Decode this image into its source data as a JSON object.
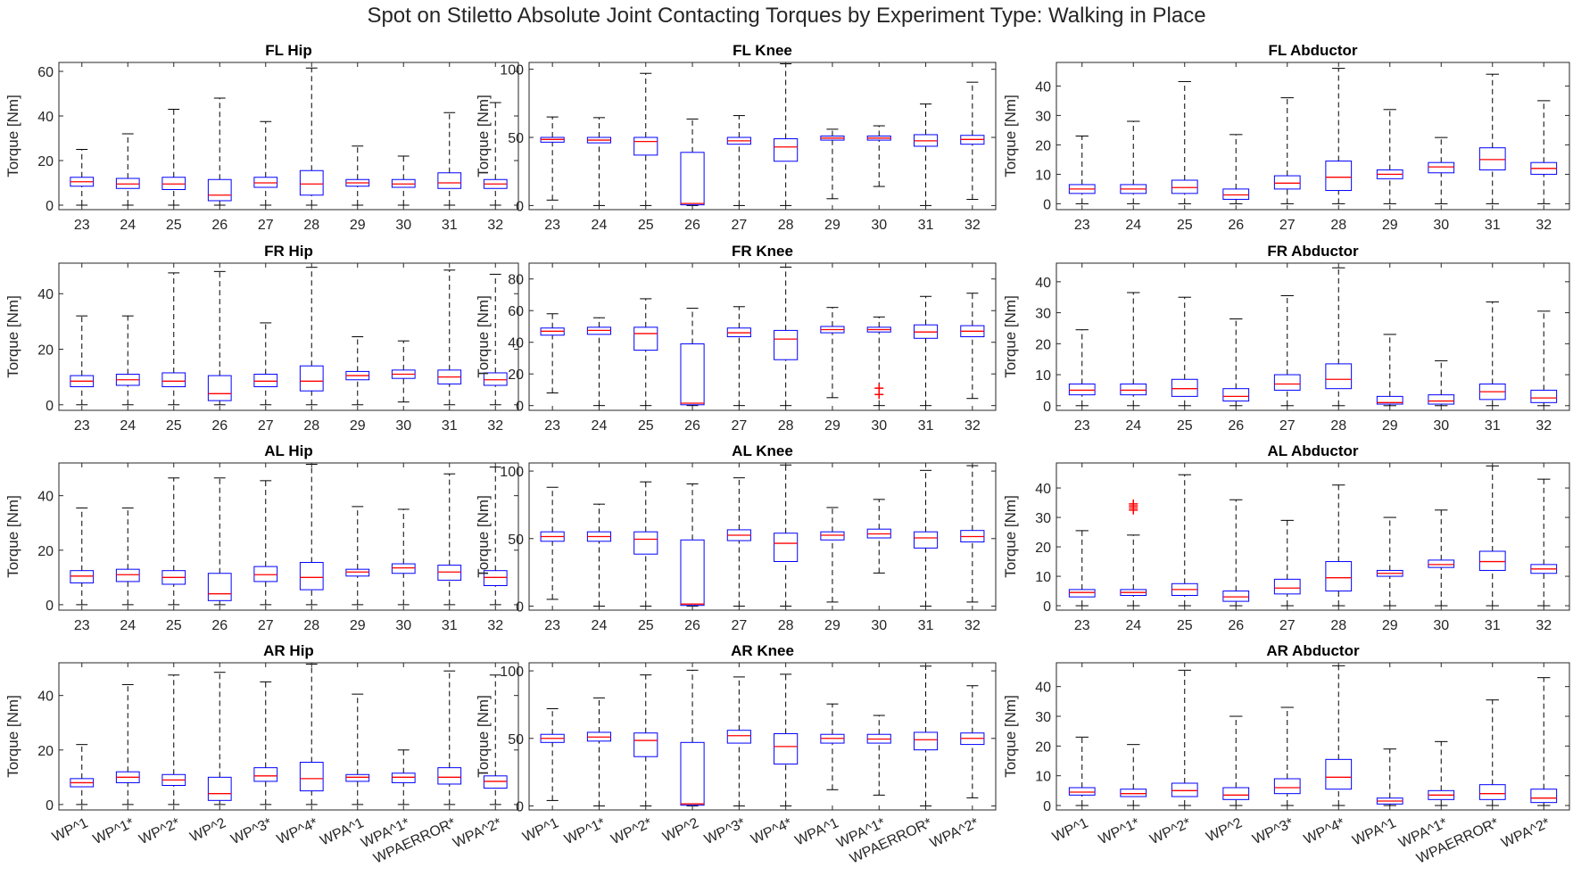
{
  "figure_title": "Spot on Stiletto Absolute Joint Contacting Torques by Experiment Type: Walking in Place",
  "colors": {
    "box": "#0000ff",
    "median": "#ff0000",
    "whisker": "#000000",
    "outlier": "#ff0000",
    "axes": "#262626"
  },
  "x_labels_numeric": [
    "23",
    "24",
    "25",
    "26",
    "27",
    "28",
    "29",
    "30",
    "31",
    "32"
  ],
  "x_labels_experiment": [
    "WP^1",
    "WP^1*",
    "WP^2*",
    "WP^2",
    "WP^3*",
    "WP^4*",
    "WPA^1",
    "WPA^1*",
    "WPAERROR*",
    "WPA^2*"
  ],
  "chart_data": [
    {
      "type": "box",
      "title": "FL Hip",
      "ylabel": "Torque [Nm]",
      "ylim": [
        -2,
        64
      ],
      "yticks": [
        0,
        20,
        40,
        60
      ],
      "xlabel_set": "numeric",
      "boxes": [
        {
          "lo": 0,
          "q1": 8.5,
          "med": 10.5,
          "q3": 12.5,
          "hi": 25
        },
        {
          "lo": 0,
          "q1": 7.5,
          "med": 9.5,
          "q3": 12,
          "hi": 32
        },
        {
          "lo": 0,
          "q1": 7,
          "med": 9.5,
          "q3": 12.5,
          "hi": 43
        },
        {
          "lo": 0,
          "q1": 2,
          "med": 4.5,
          "q3": 11.5,
          "hi": 48
        },
        {
          "lo": 0,
          "q1": 8,
          "med": 10,
          "q3": 12.5,
          "hi": 37.5
        },
        {
          "lo": 0,
          "q1": 4.5,
          "med": 9.5,
          "q3": 15.5,
          "hi": 61.5
        },
        {
          "lo": 0,
          "q1": 8.5,
          "med": 10,
          "q3": 11.5,
          "hi": 26.5
        },
        {
          "lo": 0,
          "q1": 8,
          "med": 9.5,
          "q3": 11.5,
          "hi": 22
        },
        {
          "lo": 0,
          "q1": 7.5,
          "med": 10,
          "q3": 14.5,
          "hi": 41.5
        },
        {
          "lo": 0,
          "q1": 7.5,
          "med": 9.5,
          "q3": 11.5,
          "hi": 46
        }
      ],
      "outliers": []
    },
    {
      "type": "box",
      "title": "FL Knee",
      "ylabel": "Torque [Nm]",
      "ylim": [
        -3,
        105
      ],
      "yticks": [
        0,
        50,
        100
      ],
      "xlabel_set": "numeric",
      "boxes": [
        {
          "lo": 4,
          "q1": 46.5,
          "med": 48.5,
          "q3": 50,
          "hi": 65
        },
        {
          "lo": 0,
          "q1": 46,
          "med": 48,
          "q3": 50,
          "hi": 64.5
        },
        {
          "lo": 0,
          "q1": 37,
          "med": 47,
          "q3": 50,
          "hi": 97
        },
        {
          "lo": 0,
          "q1": 0.5,
          "med": 1.5,
          "q3": 39,
          "hi": 63.5
        },
        {
          "lo": 0,
          "q1": 45,
          "med": 47.5,
          "q3": 50,
          "hi": 66
        },
        {
          "lo": 0,
          "q1": 32.5,
          "med": 43,
          "q3": 49,
          "hi": 104
        },
        {
          "lo": 5,
          "q1": 48,
          "med": 49.5,
          "q3": 51,
          "hi": 56
        },
        {
          "lo": 14,
          "q1": 48,
          "med": 49.5,
          "q3": 51,
          "hi": 58.5
        },
        {
          "lo": 0,
          "q1": 43.5,
          "med": 47.5,
          "q3": 52,
          "hi": 74.5
        },
        {
          "lo": 4.5,
          "q1": 45,
          "med": 48.5,
          "q3": 51.5,
          "hi": 90.5
        }
      ],
      "outliers": []
    },
    {
      "type": "box",
      "title": "FL Abductor",
      "ylabel": "Torque [Nm]",
      "ylim": [
        -2,
        48
      ],
      "yticks": [
        0,
        10,
        20,
        30,
        40
      ],
      "xlabel_set": "numeric",
      "boxes": [
        {
          "lo": 0,
          "q1": 3.5,
          "med": 5,
          "q3": 6.5,
          "hi": 23
        },
        {
          "lo": 0,
          "q1": 3.5,
          "med": 5,
          "q3": 6.5,
          "hi": 28
        },
        {
          "lo": 0,
          "q1": 3.5,
          "med": 5.5,
          "q3": 8,
          "hi": 41.5
        },
        {
          "lo": 0,
          "q1": 1.5,
          "med": 3,
          "q3": 5,
          "hi": 23.5
        },
        {
          "lo": 0,
          "q1": 5,
          "med": 7,
          "q3": 9.5,
          "hi": 36
        },
        {
          "lo": 0,
          "q1": 4.5,
          "med": 9,
          "q3": 14.5,
          "hi": 46
        },
        {
          "lo": 0,
          "q1": 8.5,
          "med": 10,
          "q3": 11.5,
          "hi": 32
        },
        {
          "lo": 0,
          "q1": 10.5,
          "med": 12.5,
          "q3": 14,
          "hi": 22.5
        },
        {
          "lo": 0,
          "q1": 11.5,
          "med": 15,
          "q3": 19,
          "hi": 44
        },
        {
          "lo": 0,
          "q1": 10,
          "med": 12,
          "q3": 14,
          "hi": 35
        }
      ],
      "outliers": []
    },
    {
      "type": "box",
      "title": "FR Hip",
      "ylabel": "Torque [Nm]",
      "ylim": [
        -2,
        51
      ],
      "yticks": [
        0,
        20,
        40
      ],
      "xlabel_set": "numeric",
      "boxes": [
        {
          "lo": 0,
          "q1": 6.5,
          "med": 8.5,
          "q3": 10.5,
          "hi": 32
        },
        {
          "lo": 0,
          "q1": 7,
          "med": 9,
          "q3": 11,
          "hi": 32
        },
        {
          "lo": 0,
          "q1": 6.5,
          "med": 8.5,
          "q3": 11.5,
          "hi": 47.5
        },
        {
          "lo": 0,
          "q1": 1.5,
          "med": 4,
          "q3": 10.5,
          "hi": 48
        },
        {
          "lo": 0,
          "q1": 6.5,
          "med": 8.5,
          "q3": 11,
          "hi": 29.5
        },
        {
          "lo": 0,
          "q1": 5,
          "med": 8.5,
          "q3": 14,
          "hi": 49.5
        },
        {
          "lo": 0,
          "q1": 9,
          "med": 10.5,
          "q3": 12,
          "hi": 24.5
        },
        {
          "lo": 1,
          "q1": 9.5,
          "med": 11,
          "q3": 12.5,
          "hi": 23
        },
        {
          "lo": 0,
          "q1": 7.5,
          "med": 10,
          "q3": 12.5,
          "hi": 48.5
        },
        {
          "lo": 0,
          "q1": 7,
          "med": 9,
          "q3": 11.5,
          "hi": 47
        }
      ],
      "outliers": []
    },
    {
      "type": "box",
      "title": "FR Knee",
      "ylabel": "Torque [Nm]",
      "ylim": [
        -3,
        90
      ],
      "yticks": [
        0,
        20,
        40,
        60,
        80
      ],
      "xlabel_set": "numeric",
      "boxes": [
        {
          "lo": 8,
          "q1": 44.5,
          "med": 47,
          "q3": 49,
          "hi": 58
        },
        {
          "lo": 0,
          "q1": 45,
          "med": 47.5,
          "q3": 49.5,
          "hi": 55.5
        },
        {
          "lo": 0,
          "q1": 35,
          "med": 45.5,
          "q3": 49.5,
          "hi": 67.5
        },
        {
          "lo": 0,
          "q1": 0.5,
          "med": 1.5,
          "q3": 39,
          "hi": 61.5
        },
        {
          "lo": 0,
          "q1": 43.5,
          "med": 46,
          "q3": 49,
          "hi": 62.5
        },
        {
          "lo": 0,
          "q1": 29,
          "med": 42,
          "q3": 47.5,
          "hi": 87.5
        },
        {
          "lo": 5,
          "q1": 46,
          "med": 48,
          "q3": 50,
          "hi": 62
        },
        {
          "lo": 0,
          "q1": 46.5,
          "med": 48,
          "q3": 49.5,
          "hi": 56
        },
        {
          "lo": 0,
          "q1": 42.5,
          "med": 46.5,
          "q3": 51,
          "hi": 69
        },
        {
          "lo": 4.5,
          "q1": 43.5,
          "med": 47,
          "q3": 50.5,
          "hi": 71
        }
      ],
      "outliers": [
        {
          "box": 7,
          "values": [
            7,
            11
          ]
        }
      ]
    },
    {
      "type": "box",
      "title": "FR Abductor",
      "ylabel": "Torque [Nm]",
      "ylim": [
        -1.5,
        46
      ],
      "yticks": [
        0,
        10,
        20,
        30,
        40
      ],
      "xlabel_set": "numeric",
      "boxes": [
        {
          "lo": 0,
          "q1": 3.5,
          "med": 5,
          "q3": 7,
          "hi": 24.5
        },
        {
          "lo": 0,
          "q1": 3.5,
          "med": 5,
          "q3": 7,
          "hi": 36.5
        },
        {
          "lo": 0,
          "q1": 3,
          "med": 5.5,
          "q3": 8.5,
          "hi": 35
        },
        {
          "lo": 0,
          "q1": 1.5,
          "med": 3,
          "q3": 5.5,
          "hi": 28
        },
        {
          "lo": 0,
          "q1": 5,
          "med": 7,
          "q3": 10,
          "hi": 35.5
        },
        {
          "lo": 0,
          "q1": 5.5,
          "med": 8.5,
          "q3": 13.5,
          "hi": 44.5
        },
        {
          "lo": 0,
          "q1": 0.5,
          "med": 1,
          "q3": 3,
          "hi": 23
        },
        {
          "lo": 0,
          "q1": 0.5,
          "med": 1.5,
          "q3": 3.5,
          "hi": 14.5
        },
        {
          "lo": 0,
          "q1": 2,
          "med": 4.5,
          "q3": 7,
          "hi": 33.5
        },
        {
          "lo": 0,
          "q1": 1,
          "med": 2.5,
          "q3": 5,
          "hi": 30.5
        }
      ],
      "outliers": []
    },
    {
      "type": "box",
      "title": "AL Hip",
      "ylabel": "Torque [Nm]",
      "ylim": [
        -2,
        52
      ],
      "yticks": [
        0,
        20,
        40
      ],
      "xlabel_set": "numeric",
      "boxes": [
        {
          "lo": 0,
          "q1": 8,
          "med": 10.5,
          "q3": 12.5,
          "hi": 35.5
        },
        {
          "lo": 0,
          "q1": 8.5,
          "med": 11,
          "q3": 13,
          "hi": 35.5
        },
        {
          "lo": 0,
          "q1": 7.5,
          "med": 10,
          "q3": 12.5,
          "hi": 46.5
        },
        {
          "lo": 0,
          "q1": 1.5,
          "med": 4,
          "q3": 11.5,
          "hi": 46.5
        },
        {
          "lo": 0,
          "q1": 8.5,
          "med": 11,
          "q3": 14,
          "hi": 45.5
        },
        {
          "lo": 0,
          "q1": 5.5,
          "med": 10,
          "q3": 15.5,
          "hi": 51.5
        },
        {
          "lo": 0,
          "q1": 10.5,
          "med": 12,
          "q3": 13,
          "hi": 36
        },
        {
          "lo": 0,
          "q1": 11.5,
          "med": 13.5,
          "q3": 15,
          "hi": 35
        },
        {
          "lo": 0,
          "q1": 9,
          "med": 12,
          "q3": 14.5,
          "hi": 48
        },
        {
          "lo": 0,
          "q1": 7,
          "med": 10,
          "q3": 12.5,
          "hi": 50.5
        }
      ],
      "outliers": []
    },
    {
      "type": "box",
      "title": "AL Knee",
      "ylabel": "Torque [Nm]",
      "ylim": [
        -3,
        106
      ],
      "yticks": [
        0,
        50,
        100
      ],
      "xlabel_set": "numeric",
      "boxes": [
        {
          "lo": 5,
          "q1": 48,
          "med": 51.5,
          "q3": 55,
          "hi": 88
        },
        {
          "lo": 0,
          "q1": 48,
          "med": 51.5,
          "q3": 55,
          "hi": 75.5
        },
        {
          "lo": 0,
          "q1": 38.5,
          "med": 49.5,
          "q3": 55,
          "hi": 92
        },
        {
          "lo": 0,
          "q1": 0.5,
          "med": 1.5,
          "q3": 49,
          "hi": 90.5
        },
        {
          "lo": 0,
          "q1": 48.5,
          "med": 52.5,
          "q3": 56.5,
          "hi": 95
        },
        {
          "lo": 0,
          "q1": 33,
          "med": 46.5,
          "q3": 54,
          "hi": 104.5
        },
        {
          "lo": 3,
          "q1": 49,
          "med": 52.5,
          "q3": 55,
          "hi": 73
        },
        {
          "lo": 24.5,
          "q1": 50.5,
          "med": 53.5,
          "q3": 57,
          "hi": 79
        },
        {
          "lo": 0,
          "q1": 43,
          "med": 50.5,
          "q3": 55,
          "hi": 100.5
        },
        {
          "lo": 3,
          "q1": 47.5,
          "med": 51.5,
          "q3": 56,
          "hi": 104
        }
      ],
      "outliers": []
    },
    {
      "type": "box",
      "title": "AL Abductor",
      "ylabel": "Torque [Nm]",
      "ylim": [
        -1.5,
        48.5
      ],
      "yticks": [
        0,
        10,
        20,
        30,
        40
      ],
      "xlabel_set": "numeric",
      "boxes": [
        {
          "lo": 0,
          "q1": 3,
          "med": 4.5,
          "q3": 5.5,
          "hi": 25.5
        },
        {
          "lo": 0,
          "q1": 3.5,
          "med": 4.5,
          "q3": 5.5,
          "hi": 24
        },
        {
          "lo": 0,
          "q1": 3.5,
          "med": 5.5,
          "q3": 7.5,
          "hi": 44.5
        },
        {
          "lo": 0,
          "q1": 1.5,
          "med": 3,
          "q3": 5,
          "hi": 36
        },
        {
          "lo": 0,
          "q1": 4,
          "med": 6,
          "q3": 9,
          "hi": 29
        },
        {
          "lo": 0,
          "q1": 5,
          "med": 9.5,
          "q3": 15,
          "hi": 41
        },
        {
          "lo": 0,
          "q1": 10,
          "med": 11,
          "q3": 12,
          "hi": 30
        },
        {
          "lo": 0,
          "q1": 13,
          "med": 14,
          "q3": 15.5,
          "hi": 32.5
        },
        {
          "lo": 0,
          "q1": 12,
          "med": 15,
          "q3": 18.5,
          "hi": 47.5
        },
        {
          "lo": 0,
          "q1": 11,
          "med": 12.5,
          "q3": 14,
          "hi": 43
        }
      ],
      "outliers": [
        {
          "box": 1,
          "values": [
            32.5,
            33.2,
            33.9,
            34.6
          ]
        }
      ]
    },
    {
      "type": "box",
      "title": "AR Hip",
      "ylabel": "Torque [Nm]",
      "ylim": [
        -2,
        52
      ],
      "yticks": [
        0,
        20,
        40
      ],
      "xlabel_set": "experiment",
      "boxes": [
        {
          "lo": 0,
          "q1": 6.5,
          "med": 8,
          "q3": 9.5,
          "hi": 22
        },
        {
          "lo": 0,
          "q1": 8,
          "med": 10,
          "q3": 12,
          "hi": 44
        },
        {
          "lo": 0,
          "q1": 7,
          "med": 9,
          "q3": 11,
          "hi": 47.5
        },
        {
          "lo": 0,
          "q1": 1.5,
          "med": 4,
          "q3": 10,
          "hi": 48.5
        },
        {
          "lo": 0,
          "q1": 8.5,
          "med": 10.5,
          "q3": 13.5,
          "hi": 45
        },
        {
          "lo": 0,
          "q1": 5,
          "med": 9.5,
          "q3": 15.5,
          "hi": 51.5
        },
        {
          "lo": 0,
          "q1": 8.5,
          "med": 10,
          "q3": 11,
          "hi": 40.5
        },
        {
          "lo": 0,
          "q1": 8,
          "med": 10,
          "q3": 11.5,
          "hi": 20
        },
        {
          "lo": 0,
          "q1": 7.5,
          "med": 10,
          "q3": 13.5,
          "hi": 49
        },
        {
          "lo": 0,
          "q1": 6,
          "med": 8.5,
          "q3": 10.5,
          "hi": 47.5
        }
      ],
      "outliers": []
    },
    {
      "type": "box",
      "title": "AR Knee",
      "ylabel": "Torque [Nm]",
      "ylim": [
        -3,
        106
      ],
      "yticks": [
        0,
        50,
        100
      ],
      "xlabel_set": "experiment",
      "boxes": [
        {
          "lo": 4,
          "q1": 47,
          "med": 50,
          "q3": 53,
          "hi": 72
        },
        {
          "lo": 0,
          "q1": 48,
          "med": 51,
          "q3": 54.5,
          "hi": 80
        },
        {
          "lo": 0,
          "q1": 36.5,
          "med": 48.5,
          "q3": 54,
          "hi": 97
        },
        {
          "lo": 0,
          "q1": 0.5,
          "med": 1.5,
          "q3": 47,
          "hi": 100.5
        },
        {
          "lo": 0,
          "q1": 46.5,
          "med": 52,
          "q3": 56,
          "hi": 95.5
        },
        {
          "lo": 0,
          "q1": 31,
          "med": 44,
          "q3": 53.5,
          "hi": 97.5
        },
        {
          "lo": 12,
          "q1": 46.5,
          "med": 50,
          "q3": 53,
          "hi": 75.5
        },
        {
          "lo": 8,
          "q1": 46.5,
          "med": 49.5,
          "q3": 53,
          "hi": 67
        },
        {
          "lo": 0,
          "q1": 41.5,
          "med": 49,
          "q3": 54.5,
          "hi": 103.5
        },
        {
          "lo": 6,
          "q1": 45.5,
          "med": 50,
          "q3": 54,
          "hi": 89
        }
      ],
      "outliers": []
    },
    {
      "type": "box",
      "title": "AR Abductor",
      "ylabel": "Torque [Nm]",
      "ylim": [
        -1.5,
        48
      ],
      "yticks": [
        0,
        10,
        20,
        30,
        40
      ],
      "xlabel_set": "experiment",
      "boxes": [
        {
          "lo": 0,
          "q1": 3.5,
          "med": 4.5,
          "q3": 6,
          "hi": 23
        },
        {
          "lo": 0,
          "q1": 3,
          "med": 4,
          "q3": 5.5,
          "hi": 20.5
        },
        {
          "lo": 0,
          "q1": 3,
          "med": 5,
          "q3": 7.5,
          "hi": 45.5
        },
        {
          "lo": 0,
          "q1": 2,
          "med": 3.5,
          "q3": 6,
          "hi": 30
        },
        {
          "lo": 0,
          "q1": 4,
          "med": 6,
          "q3": 9,
          "hi": 33
        },
        {
          "lo": 0,
          "q1": 5.5,
          "med": 9.5,
          "q3": 15.5,
          "hi": 47
        },
        {
          "lo": 0,
          "q1": 0.5,
          "med": 1.5,
          "q3": 2.5,
          "hi": 19
        },
        {
          "lo": 0,
          "q1": 2,
          "med": 3.5,
          "q3": 5,
          "hi": 21.5
        },
        {
          "lo": 0,
          "q1": 2,
          "med": 4,
          "q3": 7,
          "hi": 35.5
        },
        {
          "lo": 0,
          "q1": 1,
          "med": 2.5,
          "q3": 5.5,
          "hi": 43
        }
      ],
      "outliers": []
    }
  ]
}
